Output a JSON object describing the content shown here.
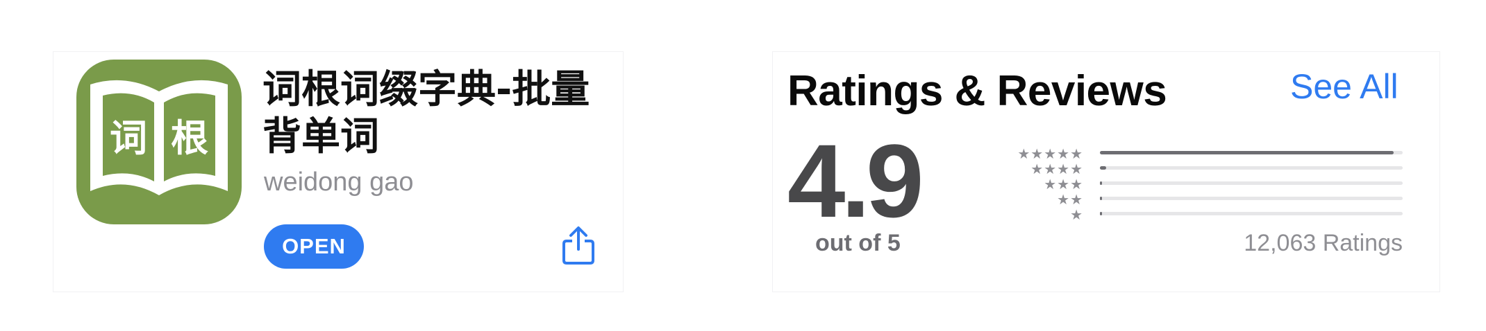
{
  "app": {
    "title": "词根词缀字典-批量背单词",
    "developer": "weidong gao",
    "open_label": "OPEN",
    "icon_text_left": "词",
    "icon_text_right": "根",
    "icon_color": "#7a9b4a"
  },
  "ratings": {
    "section_title": "Ratings & Reviews",
    "see_all_label": "See All",
    "average": "4.9",
    "out_of": "out of 5",
    "count_label": "12,063 Ratings",
    "histogram": [
      {
        "stars": "★★★★★",
        "fraction": 0.97
      },
      {
        "stars": "★★★★",
        "fraction": 0.02
      },
      {
        "stars": "★★★",
        "fraction": 0.005
      },
      {
        "stars": "★★",
        "fraction": 0.003
      },
      {
        "stars": "★",
        "fraction": 0.005
      }
    ]
  },
  "colors": {
    "accent": "#2f7bf0",
    "bar_fill": "#6d6d72",
    "bar_track": "#e6e6e8"
  },
  "icons": {
    "share": "share-icon",
    "app": "book-icon"
  }
}
